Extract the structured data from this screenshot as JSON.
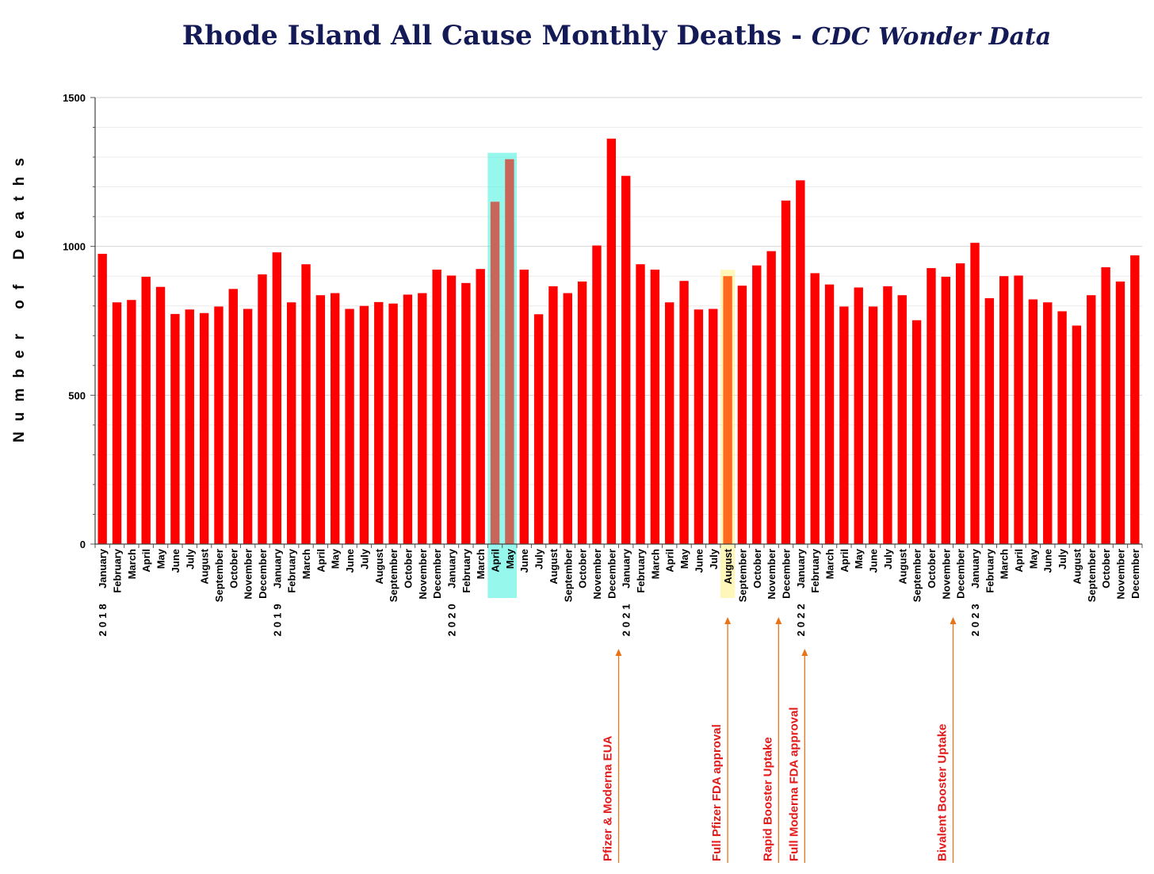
{
  "chart_data": {
    "type": "bar",
    "title": "Rhode Island All Cause Monthly Deaths - ",
    "subtitle": "CDC Wonder Data",
    "ylabel": "Number of Deaths",
    "xlabel": "",
    "ylim": [
      0,
      1500
    ],
    "yticks": [
      0,
      500,
      1000,
      1500
    ],
    "grid": true,
    "bar_color": "#ff0000",
    "years": [
      {
        "label": "2018",
        "start_index": 0
      },
      {
        "label": "2019",
        "start_index": 12
      },
      {
        "label": "2020",
        "start_index": 24
      },
      {
        "label": "2021",
        "start_index": 36
      },
      {
        "label": "2022",
        "start_index": 48
      },
      {
        "label": "2023",
        "start_index": 60
      }
    ],
    "categories": [
      "January",
      "February",
      "March",
      "April",
      "May",
      "June",
      "July",
      "August",
      "September",
      "October",
      "November",
      "December",
      "January",
      "February",
      "March",
      "April",
      "May",
      "June",
      "July",
      "August",
      "September",
      "October",
      "November",
      "December",
      "January",
      "February",
      "March",
      "April",
      "May",
      "June",
      "July",
      "August",
      "September",
      "October",
      "November",
      "December",
      "January",
      "February",
      "March",
      "April",
      "May",
      "June",
      "July",
      "August",
      "September",
      "October",
      "November",
      "December",
      "January",
      "February",
      "March",
      "April",
      "May",
      "June",
      "July",
      "August",
      "September",
      "October",
      "November",
      "December",
      "January",
      "February",
      "March",
      "April",
      "May",
      "June",
      "July",
      "August",
      "September",
      "October",
      "November",
      "December"
    ],
    "values": [
      975,
      812,
      820,
      898,
      864,
      773,
      788,
      776,
      798,
      857,
      790,
      906,
      980,
      812,
      940,
      836,
      843,
      790,
      800,
      813,
      808,
      838,
      843,
      922,
      902,
      877,
      924,
      1150,
      1293,
      922,
      772,
      866,
      843,
      882,
      1003,
      1362,
      1237,
      940,
      922,
      812,
      884,
      788,
      790,
      900,
      868,
      936,
      984,
      1154,
      1222,
      910,
      872,
      798,
      862,
      798,
      866,
      836,
      752,
      927,
      898,
      943,
      1012,
      826,
      900,
      902,
      822,
      812,
      782,
      734,
      836,
      930,
      882,
      970
    ],
    "highlights": [
      {
        "start_index": 27,
        "end_index": 28,
        "color": "#3ff2df",
        "bar_color": "#c8665a"
      },
      {
        "start_index": 43,
        "end_index": 43,
        "color": "#ffef80",
        "bar_color": "#ff6a1f"
      }
    ],
    "annotations": [
      {
        "text": "Pfizer & Moderna EUA",
        "index": 35.5
      },
      {
        "text": "Full Pfizer FDA approval",
        "index": 43
      },
      {
        "text": "Rapid Booster Uptake",
        "index": 46.5
      },
      {
        "text": "Full Moderna FDA approval",
        "index": 48.3
      },
      {
        "text": "Bivalent Booster Uptake",
        "index": 58.5
      }
    ],
    "annotation_color": "#e8741a"
  }
}
